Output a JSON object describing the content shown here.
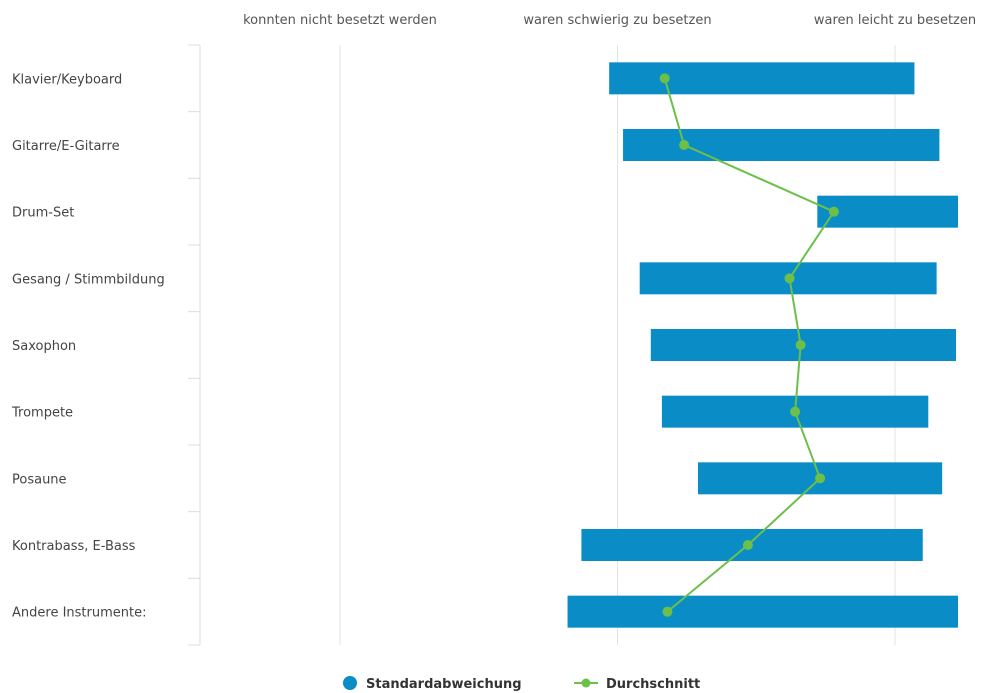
{
  "chart_data": {
    "type": "bar",
    "orientation": "horizontal",
    "categories": [
      "Klavier/Keyboard",
      "Gitarre/E-Gitarre",
      "Drum-Set",
      "Gesang / Stimmbildung",
      "Saxophon",
      "Trompete",
      "Posaune",
      "Kontrabass, E-Bass",
      "Andere Instrumente:"
    ],
    "x_ticks": [
      {
        "value": 1,
        "label": "konnten nicht besetzt werden"
      },
      {
        "value": 2,
        "label": "waren schwierig zu besetzen"
      },
      {
        "value": 3,
        "label": "waren leicht zu besetzen"
      }
    ],
    "xlim": [
      0.5,
      3.28
    ],
    "grid": true,
    "legend_position": "bottom",
    "series": [
      {
        "name": "Standardabweichung",
        "kind": "range-bar",
        "color": "#0a8cc6",
        "ranges": [
          [
            1.97,
            3.07
          ],
          [
            2.02,
            3.16
          ],
          [
            2.72,
            3.54
          ],
          [
            2.08,
            3.15
          ],
          [
            2.12,
            3.22
          ],
          [
            2.16,
            3.12
          ],
          [
            2.29,
            3.17
          ],
          [
            1.87,
            3.1
          ],
          [
            1.82,
            3.26
          ]
        ]
      },
      {
        "name": "Durchschnitt",
        "kind": "line",
        "color": "#6cc04a",
        "values": [
          2.17,
          2.24,
          2.78,
          2.62,
          2.66,
          2.64,
          2.73,
          2.47,
          2.18
        ]
      }
    ]
  }
}
